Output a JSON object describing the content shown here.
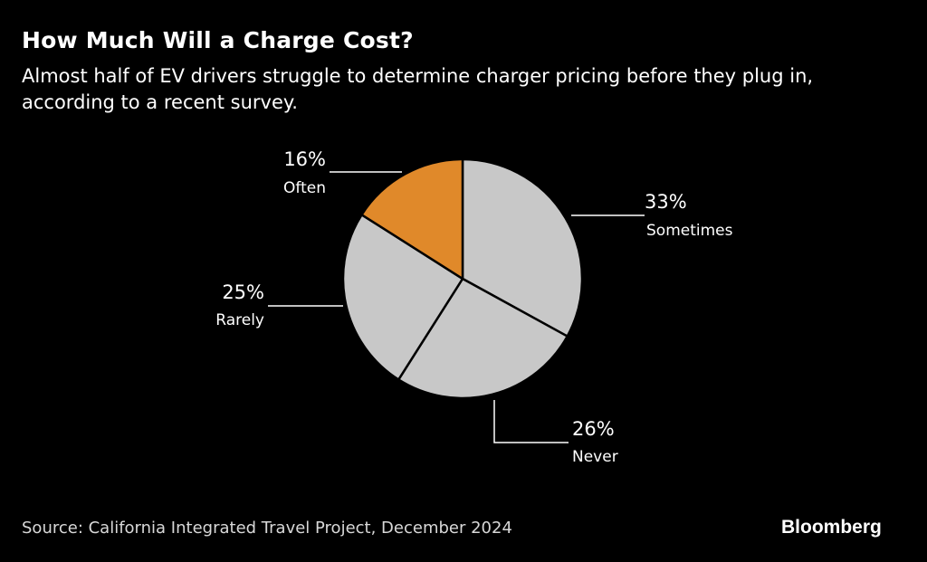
{
  "header": {
    "title": "How Much Will a Charge Cost?",
    "subtitle": "Almost half of EV drivers struggle to determine charger pricing before they plug in, according to a recent survey."
  },
  "chart_data": {
    "type": "pie",
    "title": "How Much Will a Charge Cost?",
    "subtitle": "Almost half of EV drivers struggle to determine charger pricing before they plug in, according to a recent survey.",
    "slices": [
      {
        "label": "Sometimes",
        "value": 33,
        "value_label": "33%",
        "color": "#c8c8c8"
      },
      {
        "label": "Never",
        "value": 26,
        "value_label": "26%",
        "color": "#c8c8c8"
      },
      {
        "label": "Rarely",
        "value": 25,
        "value_label": "25%",
        "color": "#c8c8c8"
      },
      {
        "label": "Often",
        "value": 16,
        "value_label": "16%",
        "color": "#e0892a"
      }
    ],
    "start": "12 o'clock",
    "direction": "clockwise",
    "legend": "none"
  },
  "footer": {
    "source": "Source: California Integrated Travel Project, December 2024",
    "brand": "Bloomberg"
  },
  "colors": {
    "background": "#000000",
    "slice_default": "#c8c8c8",
    "slice_highlight": "#e0892a",
    "text": "#ffffff"
  }
}
